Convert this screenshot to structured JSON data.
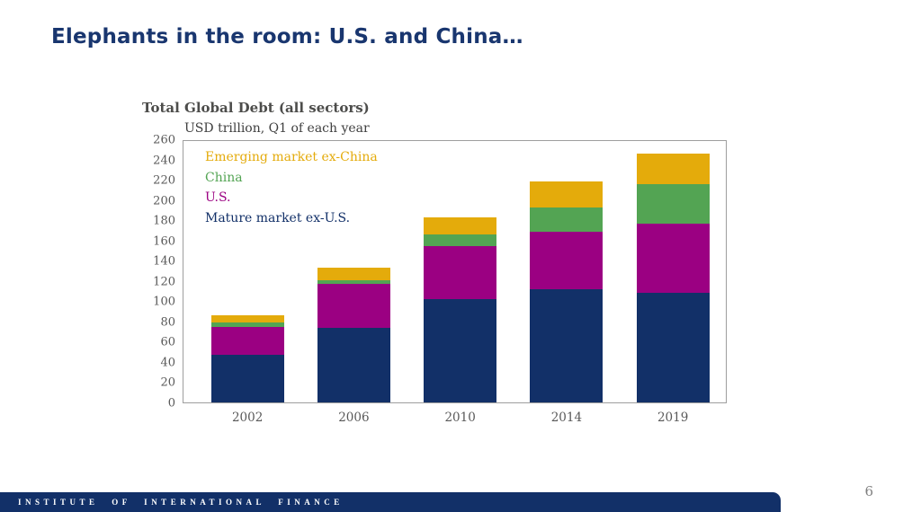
{
  "slide": {
    "title": "Elephants in the room: U.S. and China…",
    "footer_brand": "INSTITUTE OF INTERNATIONAL FINANCE",
    "page_number": "6"
  },
  "colors": {
    "title_navy": "#19366F",
    "footer_navy": "#123068",
    "axis_text_gray": "#595959",
    "chart_title_gray": "#4D4D4B",
    "plot_border_gray": "#9E9E9E",
    "page_number_gray": "#7F7F7F"
  },
  "chart_data": {
    "type": "bar",
    "stacked": true,
    "title": "Total Global Debt (all sectors)",
    "subtitle": "USD trillion, Q1 of each year",
    "categories": [
      "2002",
      "2006",
      "2010",
      "2014",
      "2019"
    ],
    "series": [
      {
        "name": "Mature market ex-U.S.",
        "color": "#123068",
        "values": [
          47,
          74,
          102,
          112,
          108
        ]
      },
      {
        "name": "U.S.",
        "color": "#9B0082",
        "values": [
          28,
          43,
          52,
          57,
          69
        ]
      },
      {
        "name": "China",
        "color": "#53A453",
        "values": [
          4,
          4,
          12,
          24,
          39
        ]
      },
      {
        "name": "Emerging market ex-China",
        "color": "#E4AB0B",
        "values": [
          7,
          12,
          17,
          25,
          30
        ]
      }
    ],
    "totals": [
      86,
      133,
      183,
      218,
      246
    ],
    "ylim": [
      0,
      260
    ],
    "ytick_step": 20,
    "grid": false,
    "legend_position": "top-left-inside",
    "legend_order": [
      "Emerging market ex-China",
      "China",
      "U.S.",
      "Mature market ex-U.S."
    ]
  }
}
